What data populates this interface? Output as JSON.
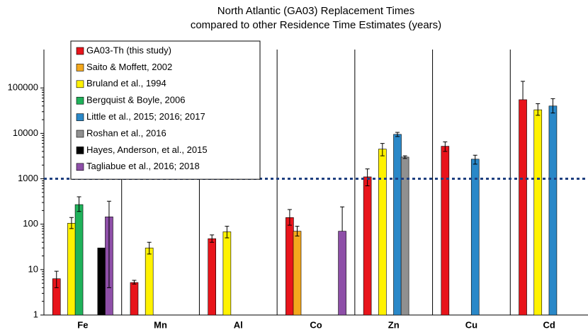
{
  "chart_data": {
    "type": "bar",
    "title": "North Atlantic (GA03) Replacement Times",
    "subtitle": "compared to other Residence Time Estimates (years)",
    "categories": [
      "Fe",
      "Mn",
      "Al",
      "Co",
      "Zn",
      "Cu",
      "Cd"
    ],
    "log_scale": true,
    "ylim": [
      1,
      700000
    ],
    "yticks": [
      1,
      10,
      100,
      1000,
      10000,
      100000
    ],
    "reference_line": {
      "value": 1000,
      "color": "#1f3f7f"
    },
    "legend": "top-left",
    "series": [
      {
        "name": "GA03-Th (this study)",
        "color": "#e8141b",
        "values": [
          6.3,
          5.2,
          48,
          140,
          1100,
          5200,
          55000
        ],
        "lower": [
          4,
          4.8,
          40,
          95,
          700,
          4000,
          null
        ],
        "upper": [
          9.2,
          5.8,
          58,
          210,
          1650,
          6500,
          140000
        ]
      },
      {
        "name": "Saito & Moffett, 2002",
        "color": "#f4a81d",
        "values": [
          null,
          null,
          null,
          70,
          null,
          null,
          null
        ],
        "lower": [
          null,
          null,
          null,
          55,
          null,
          null,
          null
        ],
        "upper": [
          null,
          null,
          null,
          90,
          null,
          null,
          null
        ]
      },
      {
        "name": "Bruland et al., 1994",
        "color": "#fff200",
        "values": [
          105,
          30,
          68,
          null,
          4500,
          null,
          33000
        ],
        "lower": [
          80,
          22,
          50,
          null,
          3200,
          null,
          25000
        ],
        "upper": [
          140,
          40,
          90,
          null,
          6000,
          null,
          45000
        ]
      },
      {
        "name": "Bergquist & Boyle, 2006",
        "color": "#1fb25a",
        "values": [
          270,
          null,
          null,
          null,
          null,
          null,
          null
        ],
        "lower": [
          190,
          null,
          null,
          null,
          null,
          null,
          null
        ],
        "upper": [
          400,
          null,
          null,
          null,
          null,
          null,
          null
        ]
      },
      {
        "name": "Little et al., 2015; 2016; 2017",
        "color": "#2a88c8",
        "values": [
          null,
          null,
          null,
          null,
          9500,
          2700,
          40000
        ],
        "lower": [
          null,
          null,
          null,
          null,
          8500,
          2100,
          28000
        ],
        "upper": [
          null,
          null,
          null,
          null,
          10500,
          3300,
          58000
        ]
      },
      {
        "name": "Roshan et al., 2016",
        "color": "#909090",
        "values": [
          null,
          null,
          null,
          null,
          3000,
          null,
          null
        ],
        "lower": [
          null,
          null,
          null,
          null,
          2800,
          null,
          null
        ],
        "upper": [
          null,
          null,
          null,
          null,
          3200,
          null,
          null
        ]
      },
      {
        "name": "Hayes, Anderson, et al., 2015",
        "color": "#000000",
        "values": [
          30,
          null,
          null,
          null,
          null,
          null,
          null
        ],
        "lower": [
          null,
          null,
          null,
          null,
          null,
          null,
          null
        ],
        "upper": [
          null,
          null,
          null,
          null,
          null,
          null,
          null
        ]
      },
      {
        "name": "Tagliabue et al., 2016; 2018",
        "color": "#8e4fa8",
        "values": [
          145,
          null,
          null,
          70,
          null,
          null,
          null
        ],
        "lower": [
          4,
          null,
          null,
          null,
          null,
          null,
          null
        ],
        "upper": [
          320,
          null,
          null,
          240,
          null,
          null,
          null
        ]
      }
    ]
  }
}
